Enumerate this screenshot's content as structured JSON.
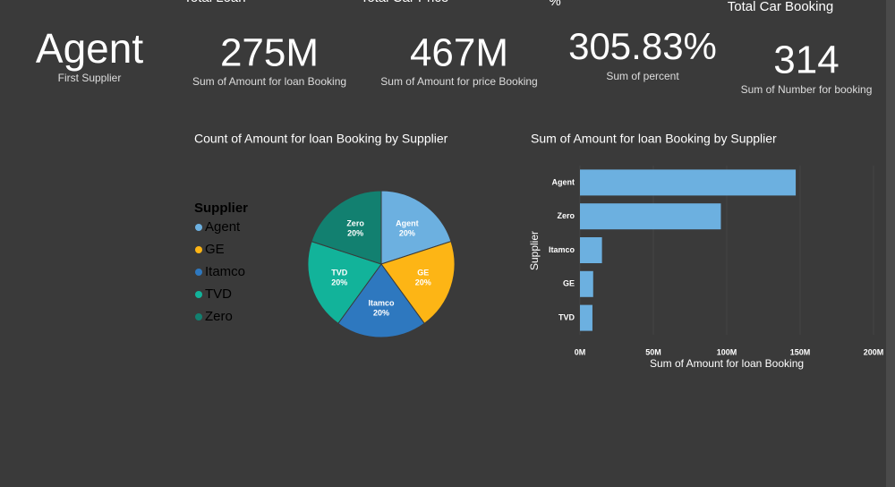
{
  "cards": [
    {
      "title": "Total Loan",
      "value": "Agent",
      "label": "First Supplier"
    },
    {
      "title": "Total Car Price",
      "value": "275M",
      "label": "Sum of Amount for loan Booking"
    },
    {
      "value": "467M",
      "label": "Sum of Amount for price Booking"
    },
    {
      "title": "%",
      "value": "305.83%",
      "label": "Sum of percent"
    },
    {
      "title": "Total Car Booking",
      "value": "314",
      "label": "Sum of Number for booking"
    }
  ],
  "chart_data": [
    {
      "type": "pie",
      "title": "Count of Amount for loan Booking by Supplier",
      "legend_title": "Supplier",
      "categories": [
        "Agent",
        "GE",
        "Itamco",
        "TVD",
        "Zero"
      ],
      "values": [
        20,
        20,
        20,
        20,
        20
      ],
      "value_labels": [
        "20%",
        "20%",
        "20%",
        "20%",
        "20%"
      ],
      "colors": [
        "#6cb0e0",
        "#fdb515",
        "#2e78bf",
        "#12b39a",
        "#128070"
      ]
    },
    {
      "type": "barh",
      "title": "Sum of Amount for loan Booking by Supplier",
      "x_label": "Sum of Amount for loan Booking",
      "y_label": "Supplier",
      "categories": [
        "Agent",
        "Zero",
        "Itamco",
        "GE",
        "TVD"
      ],
      "values": [
        147000000,
        96000000,
        15000000,
        9000000,
        8500000
      ],
      "color": "#6cb0e0",
      "xlim": [
        0,
        200000000
      ],
      "xticks": [
        {
          "value": 0,
          "label": "0M"
        },
        {
          "value": 50000000,
          "label": "50M"
        },
        {
          "value": 100000000,
          "label": "100M"
        },
        {
          "value": 150000000,
          "label": "150M"
        },
        {
          "value": 200000000,
          "label": "200M"
        }
      ]
    }
  ]
}
